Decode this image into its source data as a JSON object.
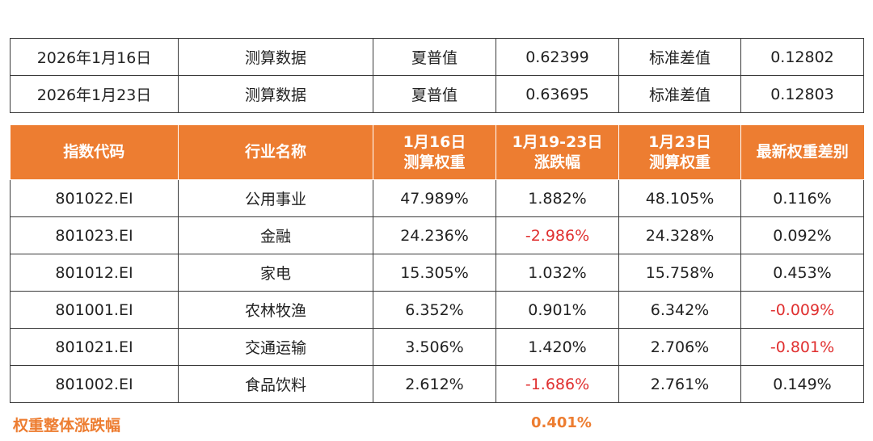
{
  "summary_rows": [
    {
      "date": "2026年1月16日",
      "type": "测算数据",
      "metric1_name": "夏普值",
      "metric1_value": "0.62399",
      "metric2_name": "标准差值",
      "metric2_value": "0.12802"
    },
    {
      "date": "2026年1月23日",
      "type": "测算数据",
      "metric1_name": "夏普值",
      "metric1_value": "0.63695",
      "metric2_name": "标准差值",
      "metric2_value": "0.12803"
    }
  ],
  "header": {
    "col1": "指数代码",
    "col2": "行业名称",
    "col3_line1": "1月16日",
    "col3_line2": "测算权重",
    "col4_line1": "1月19-23日",
    "col4_line2": "涨跌幅",
    "col5_line1": "1月23日",
    "col5_line2": "测算权重",
    "col6": "最新权重差别",
    "bg_color": "#ed7d31"
  },
  "rows": [
    {
      "code": "801022.EI",
      "industry": "公用事业",
      "weight_0116": "47.989%",
      "change": "1.882%",
      "weight_0123": "48.105%",
      "diff": "0.116%"
    },
    {
      "code": "801023.EI",
      "industry": "金融",
      "weight_0116": "24.236%",
      "change": "-2.986%",
      "weight_0123": "24.328%",
      "diff": "0.092%"
    },
    {
      "code": "801012.EI",
      "industry": "家电",
      "weight_0116": "15.305%",
      "change": "1.032%",
      "weight_0123": "15.758%",
      "diff": "0.453%"
    },
    {
      "code": "801001.EI",
      "industry": "农林牧渔",
      "weight_0116": "6.352%",
      "change": "0.901%",
      "weight_0123": "6.342%",
      "diff": "-0.009%"
    },
    {
      "code": "801021.EI",
      "industry": "交通运输",
      "weight_0116": "3.506%",
      "change": "1.420%",
      "weight_0123": "2.706%",
      "diff": "-0.801%"
    },
    {
      "code": "801002.EI",
      "industry": "食品饮料",
      "weight_0116": "2.612%",
      "change": "-1.686%",
      "weight_0123": "2.761%",
      "diff": "0.149%"
    }
  ],
  "footer": {
    "label": "权重整体涨跌幅",
    "value": "0.401%"
  },
  "colors": {
    "accent": "#ed7d31",
    "negative": "#e03030"
  }
}
